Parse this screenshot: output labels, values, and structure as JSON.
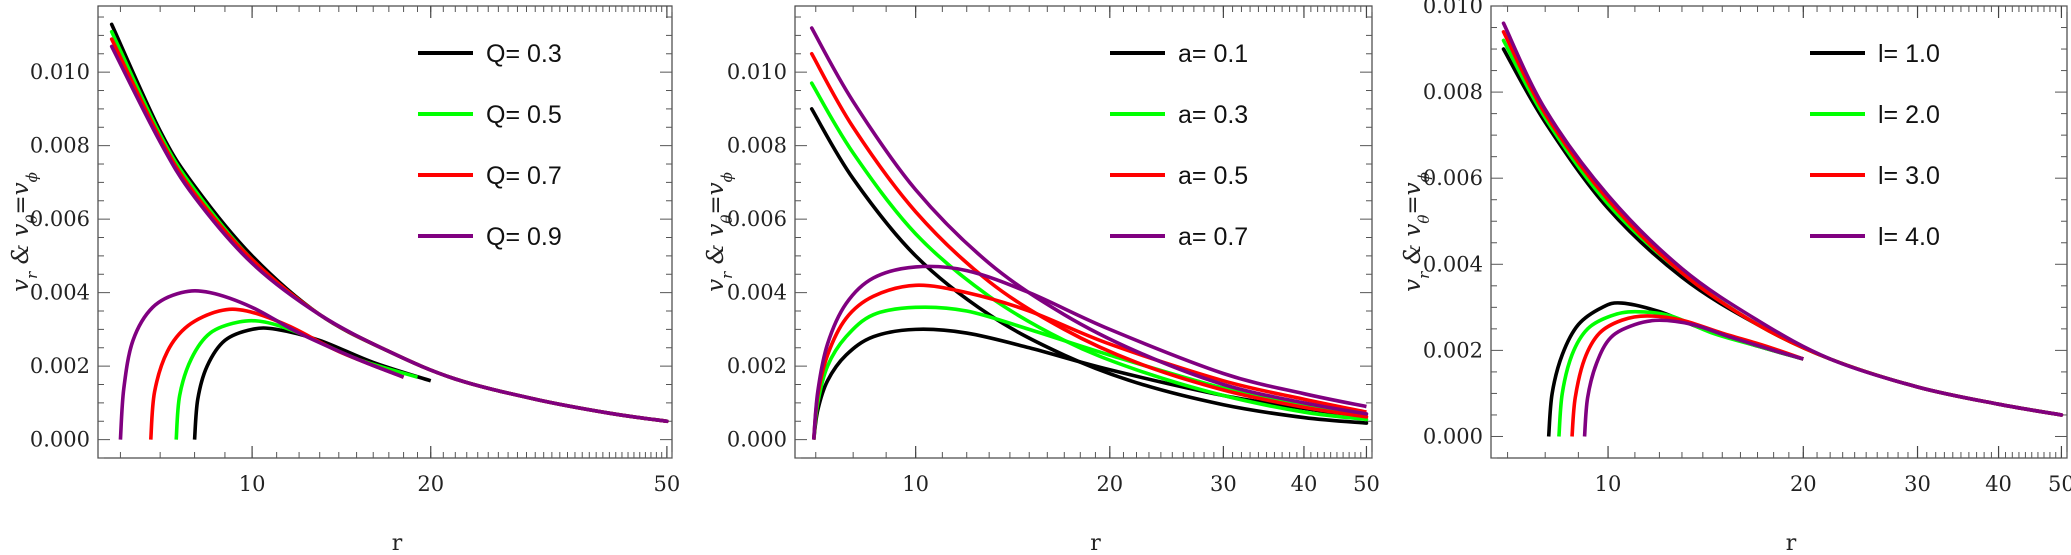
{
  "chart_data": [
    {
      "type": "line",
      "ylabel": "v_r & v_θ=v_ϕ",
      "xlabel": "r",
      "xscale": "log",
      "xlim": [
        5.5,
        51
      ],
      "ylim": [
        -0.0005,
        0.0118
      ],
      "xticks": [
        10,
        20,
        50
      ],
      "xtick_labels": [
        "10",
        "20",
        "50"
      ],
      "yticks": [
        0,
        0.002,
        0.004,
        0.006,
        0.008,
        0.01
      ],
      "ytick_labels": [
        "0.000",
        "0.002",
        "0.004",
        "0.006",
        "0.008",
        "0.010"
      ],
      "legend_position": "top-right",
      "series": [
        {
          "name": "Q= 0.3",
          "color": "#000000",
          "upper": {
            "x": [
              5.8,
              7,
              8,
              10,
              13,
              17,
              22,
              30,
              40,
              50
            ],
            "y": [
              0.0113,
              0.0084,
              0.0069,
              0.005,
              0.0034,
              0.0024,
              0.00165,
              0.0011,
              0.00072,
              0.0005
            ]
          },
          "lower": {
            "x": [
              8.0,
              8.1,
              8.4,
              9.0,
              10.0,
              11.0,
              13.0,
              16.0,
              20.0
            ],
            "y": [
              0.0,
              0.0011,
              0.002,
              0.0027,
              0.003,
              0.003,
              0.0027,
              0.0021,
              0.0016
            ]
          }
        },
        {
          "name": "Q= 0.5",
          "color": "#00ff00",
          "upper": {
            "x": [
              5.8,
              7,
              8,
              10,
              13,
              17,
              22,
              30,
              40,
              50
            ],
            "y": [
              0.0111,
              0.0083,
              0.0068,
              0.0049,
              0.0034,
              0.0024,
              0.00165,
              0.0011,
              0.00072,
              0.0005
            ]
          },
          "lower": {
            "x": [
              7.45,
              7.55,
              7.9,
              8.5,
              9.5,
              10.5,
              12.0,
              15.0,
              19.0
            ],
            "y": [
              0.0,
              0.0012,
              0.0022,
              0.0029,
              0.0032,
              0.0032,
              0.0029,
              0.0022,
              0.0017
            ]
          }
        },
        {
          "name": "Q= 0.7",
          "color": "#ff0000",
          "upper": {
            "x": [
              5.8,
              7,
              8,
              10,
              13,
              17,
              22,
              30,
              40,
              50
            ],
            "y": [
              0.0109,
              0.0082,
              0.0067,
              0.0049,
              0.0034,
              0.0024,
              0.00165,
              0.0011,
              0.00072,
              0.0005
            ]
          },
          "lower": {
            "x": [
              6.75,
              6.85,
              7.2,
              7.8,
              8.8,
              9.8,
              11.5,
              14.0,
              18.0
            ],
            "y": [
              0.0,
              0.0013,
              0.0024,
              0.0031,
              0.0035,
              0.0035,
              0.0031,
              0.0024,
              0.0017
            ]
          }
        },
        {
          "name": "Q= 0.9",
          "color": "#800080",
          "upper": {
            "x": [
              5.8,
              7,
              8,
              10,
              13,
              17,
              22,
              30,
              40,
              50
            ],
            "y": [
              0.0107,
              0.0081,
              0.0066,
              0.0048,
              0.0034,
              0.0024,
              0.00165,
              0.0011,
              0.00072,
              0.0005
            ]
          },
          "lower": {
            "x": [
              6.0,
              6.08,
              6.3,
              6.8,
              7.6,
              8.5,
              10.0,
              12.0,
              15.0,
              18.0
            ],
            "y": [
              0.0,
              0.0014,
              0.0027,
              0.0036,
              0.004,
              0.004,
              0.0036,
              0.0029,
              0.0022,
              0.0017
            ]
          }
        }
      ]
    },
    {
      "type": "line",
      "ylabel": "v_r & v_θ=v_ϕ",
      "xlabel": "r",
      "xscale": "log",
      "xlim": [
        6.5,
        51
      ],
      "ylim": [
        -0.0005,
        0.0118
      ],
      "xticks": [
        10,
        20,
        30,
        40,
        50
      ],
      "xtick_labels": [
        "10",
        "20",
        "30",
        "40",
        "50"
      ],
      "yticks": [
        0,
        0.002,
        0.004,
        0.006,
        0.008,
        0.01
      ],
      "ytick_labels": [
        "0.000",
        "0.002",
        "0.004",
        "0.006",
        "0.008",
        "0.010"
      ],
      "legend_position": "top-right",
      "series": [
        {
          "name": "a= 0.1",
          "color": "#000000",
          "upper": {
            "x": [
              6.9,
              8,
              10,
              13,
              17,
              22,
              30,
              40,
              50
            ],
            "y": [
              0.009,
              0.0071,
              0.005,
              0.0034,
              0.0023,
              0.00155,
              0.00095,
              0.0006,
              0.00045
            ]
          },
          "lower": {
            "x": [
              6.95,
              7.05,
              7.3,
              7.8,
              8.6,
              10.0,
              12.0,
              15.0,
              20.0,
              30.0,
              40.0,
              50.0
            ],
            "y": [
              0.0,
              0.0008,
              0.0016,
              0.0023,
              0.0028,
              0.003,
              0.0029,
              0.0025,
              0.0019,
              0.0012,
              0.00085,
              0.0006
            ]
          }
        },
        {
          "name": "a= 0.3",
          "color": "#00ff00",
          "upper": {
            "x": [
              6.9,
              8,
              10,
              13,
              17,
              22,
              30,
              40,
              50
            ],
            "y": [
              0.0097,
              0.0078,
              0.0056,
              0.0039,
              0.0027,
              0.0019,
              0.0012,
              0.00075,
              0.00055
            ]
          },
          "lower": {
            "x": [
              6.95,
              7.05,
              7.3,
              7.8,
              8.6,
              10.0,
              12.0,
              15.0,
              20.0,
              30.0,
              40.0,
              50.0
            ],
            "y": [
              0.0,
              0.001,
              0.002,
              0.0028,
              0.0034,
              0.0036,
              0.0035,
              0.003,
              0.0023,
              0.0014,
              0.00095,
              0.00065
            ]
          }
        },
        {
          "name": "a= 0.5",
          "color": "#ff0000",
          "upper": {
            "x": [
              6.9,
              8,
              10,
              13,
              17,
              22,
              30,
              40,
              50
            ],
            "y": [
              0.0105,
              0.0085,
              0.0062,
              0.0043,
              0.003,
              0.0021,
              0.00135,
              0.00088,
              0.00062
            ]
          },
          "lower": {
            "x": [
              6.95,
              7.05,
              7.3,
              7.8,
              8.6,
              10.0,
              12.0,
              15.0,
              20.0,
              30.0,
              40.0,
              50.0
            ],
            "y": [
              0.0,
              0.0012,
              0.0023,
              0.0033,
              0.0039,
              0.0042,
              0.004,
              0.0035,
              0.0026,
              0.0016,
              0.0011,
              0.00075
            ]
          }
        },
        {
          "name": "a= 0.7",
          "color": "#800080",
          "upper": {
            "x": [
              6.9,
              8,
              10,
              13,
              17,
              22,
              30,
              40,
              50
            ],
            "y": [
              0.0112,
              0.0092,
              0.0068,
              0.0048,
              0.0034,
              0.0024,
              0.0015,
              0.001,
              0.0007
            ]
          },
          "lower": {
            "x": [
              6.95,
              7.05,
              7.3,
              7.8,
              8.6,
              10.0,
              12.0,
              15.0,
              20.0,
              30.0,
              40.0,
              50.0
            ],
            "y": [
              0.0,
              0.0013,
              0.0026,
              0.0037,
              0.0044,
              0.0047,
              0.0046,
              0.004,
              0.003,
              0.0018,
              0.00125,
              0.0009
            ]
          }
        }
      ]
    },
    {
      "type": "line",
      "ylabel": "v_r & v_θ=v_ϕ",
      "xlabel": "r",
      "xscale": "log",
      "xlim": [
        6.6,
        51
      ],
      "ylim": [
        -0.0005,
        0.01
      ],
      "xticks": [
        10,
        20,
        30,
        40,
        50
      ],
      "xtick_labels": [
        "10",
        "20",
        "30",
        "40",
        "50"
      ],
      "yticks": [
        0,
        0.002,
        0.004,
        0.006,
        0.008,
        0.01
      ],
      "ytick_labels": [
        "0.000",
        "0.002",
        "0.004",
        "0.006",
        "0.008",
        "0.010"
      ],
      "legend_position": "top-right",
      "series": [
        {
          "name": "l= 1.0",
          "color": "#000000",
          "upper": {
            "x": [
              6.9,
              8,
              10,
              13,
              17,
              22,
              30,
              40,
              50
            ],
            "y": [
              0.009,
              0.0073,
              0.0053,
              0.0037,
              0.0026,
              0.0018,
              0.00115,
              0.00075,
              0.0005
            ]
          },
          "lower": {
            "x": [
              8.1,
              8.2,
              8.5,
              9.0,
              9.8,
              10.5,
              12.0,
              14.0,
              17.0,
              20.0
            ],
            "y": [
              0.0,
              0.001,
              0.0019,
              0.0026,
              0.003,
              0.0031,
              0.0029,
              0.0025,
              0.0021,
              0.0018
            ]
          }
        },
        {
          "name": "l= 2.0",
          "color": "#00ff00",
          "upper": {
            "x": [
              6.9,
              8,
              10,
              13,
              17,
              22,
              30,
              40,
              50
            ],
            "y": [
              0.0092,
              0.0074,
              0.0054,
              0.0038,
              0.0026,
              0.0018,
              0.00115,
              0.00075,
              0.0005
            ]
          },
          "lower": {
            "x": [
              8.4,
              8.5,
              8.8,
              9.3,
              10.1,
              11.0,
              12.5,
              14.5,
              17.0,
              20.0
            ],
            "y": [
              0.0,
              0.001,
              0.0019,
              0.0025,
              0.0028,
              0.0029,
              0.0028,
              0.0024,
              0.0021,
              0.0018
            ]
          }
        },
        {
          "name": "l= 3.0",
          "color": "#ff0000",
          "upper": {
            "x": [
              6.9,
              8,
              10,
              13,
              17,
              22,
              30,
              40,
              50
            ],
            "y": [
              0.0094,
              0.0075,
              0.0055,
              0.0038,
              0.0026,
              0.0018,
              0.00115,
              0.00075,
              0.0005
            ]
          },
          "lower": {
            "x": [
              8.8,
              8.9,
              9.2,
              9.7,
              10.5,
              11.5,
              13.0,
              15.0,
              17.5,
              20.0
            ],
            "y": [
              0.0,
              0.0009,
              0.0018,
              0.0024,
              0.0027,
              0.0028,
              0.0027,
              0.0024,
              0.0021,
              0.0018
            ]
          }
        },
        {
          "name": "l= 4.0",
          "color": "#800080",
          "upper": {
            "x": [
              6.9,
              8,
              10,
              13,
              17,
              22,
              30,
              40,
              50
            ],
            "y": [
              0.0096,
              0.0076,
              0.0056,
              0.0039,
              0.0027,
              0.0018,
              0.00115,
              0.00075,
              0.0005
            ]
          },
          "lower": {
            "x": [
              9.2,
              9.3,
              9.6,
              10.1,
              11.0,
              12.0,
              13.5,
              15.5,
              18.0,
              20.0
            ],
            "y": [
              0.0,
              0.0009,
              0.0017,
              0.0023,
              0.0026,
              0.0027,
              0.0026,
              0.0023,
              0.002,
              0.0018
            ]
          }
        }
      ]
    }
  ]
}
